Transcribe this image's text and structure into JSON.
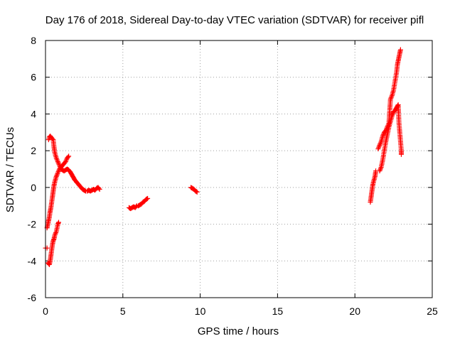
{
  "colors": {
    "series": "#ff0000",
    "grid": "#a0a0a0",
    "axis": "#000000",
    "background": "#ffffff"
  },
  "chart_data": {
    "type": "scatter",
    "title": "Day 176 of 2018, Sidereal Day-to-day VTEC variation (SDTVAR) for receiver pifl",
    "xlabel": "GPS time / hours",
    "ylabel": "SDTVAR / TECUs",
    "xlim": [
      0,
      25
    ],
    "ylim": [
      -6,
      8
    ],
    "xticks": [
      0,
      5,
      10,
      15,
      20,
      25
    ],
    "yticks": [
      -6,
      -4,
      -2,
      0,
      2,
      4,
      6,
      8
    ],
    "grid": true,
    "marker": "plus",
    "series": [
      {
        "name": "SDTVAR",
        "segments": [
          [
            [
              0.0,
              -3.3
            ],
            [
              0.1,
              -3.3
            ]
          ],
          [
            [
              0.15,
              -4.1
            ],
            [
              0.25,
              -4.2
            ],
            [
              0.3,
              -4.0
            ],
            [
              0.35,
              -3.7
            ],
            [
              0.4,
              -3.4
            ],
            [
              0.45,
              -3.1
            ],
            [
              0.5,
              -2.9
            ],
            [
              0.55,
              -2.8
            ],
            [
              0.6,
              -2.6
            ],
            [
              0.7,
              -2.4
            ],
            [
              0.8,
              -2.0
            ],
            [
              0.85,
              -1.9
            ]
          ],
          [
            [
              0.1,
              -2.2
            ],
            [
              0.15,
              -2.0
            ],
            [
              0.2,
              -1.8
            ],
            [
              0.25,
              -1.6
            ],
            [
              0.3,
              -1.3
            ],
            [
              0.35,
              -1.1
            ],
            [
              0.4,
              -0.8
            ],
            [
              0.45,
              -0.5
            ],
            [
              0.5,
              -0.2
            ],
            [
              0.55,
              0.1
            ],
            [
              0.6,
              0.3
            ],
            [
              0.7,
              0.6
            ],
            [
              0.8,
              0.8
            ],
            [
              0.9,
              1.0
            ],
            [
              1.0,
              1.1
            ],
            [
              1.1,
              1.2
            ],
            [
              1.2,
              1.3
            ],
            [
              1.3,
              1.4
            ],
            [
              1.4,
              1.6
            ],
            [
              1.5,
              1.7
            ]
          ],
          [
            [
              0.2,
              2.6
            ],
            [
              0.25,
              2.75
            ],
            [
              0.3,
              2.8
            ],
            [
              0.35,
              2.75
            ],
            [
              0.4,
              2.7
            ],
            [
              0.45,
              2.65
            ],
            [
              0.5,
              2.6
            ],
            [
              0.55,
              2.2
            ],
            [
              0.6,
              1.9
            ],
            [
              0.7,
              1.6
            ],
            [
              0.8,
              1.4
            ],
            [
              0.9,
              1.2
            ],
            [
              1.0,
              1.0
            ],
            [
              1.1,
              0.95
            ],
            [
              1.2,
              0.9
            ],
            [
              1.3,
              0.95
            ],
            [
              1.4,
              1.0
            ],
            [
              1.5,
              0.95
            ],
            [
              1.6,
              0.85
            ],
            [
              1.7,
              0.7
            ],
            [
              1.8,
              0.55
            ],
            [
              1.9,
              0.4
            ],
            [
              2.0,
              0.3
            ],
            [
              2.1,
              0.2
            ],
            [
              2.2,
              0.1
            ],
            [
              2.3,
              0.0
            ],
            [
              2.4,
              -0.1
            ],
            [
              2.5,
              -0.15
            ],
            [
              2.6,
              -0.2
            ],
            [
              2.7,
              -0.2
            ],
            [
              2.8,
              -0.15
            ],
            [
              2.9,
              -0.2
            ],
            [
              3.0,
              -0.15
            ],
            [
              3.1,
              -0.1
            ],
            [
              3.2,
              -0.15
            ],
            [
              3.3,
              -0.05
            ],
            [
              3.4,
              0.0
            ],
            [
              3.5,
              -0.1
            ]
          ],
          [
            [
              5.4,
              -1.1
            ],
            [
              5.5,
              -1.15
            ],
            [
              5.6,
              -1.1
            ],
            [
              5.7,
              -1.05
            ],
            [
              5.8,
              -1.1
            ],
            [
              5.9,
              -1.0
            ],
            [
              6.0,
              -1.0
            ],
            [
              6.1,
              -0.95
            ],
            [
              6.2,
              -0.9
            ],
            [
              6.3,
              -0.8
            ],
            [
              6.4,
              -0.75
            ],
            [
              6.5,
              -0.65
            ],
            [
              6.6,
              -0.6
            ]
          ],
          [
            [
              9.4,
              0.0
            ],
            [
              9.5,
              -0.05
            ],
            [
              9.6,
              -0.1
            ],
            [
              9.7,
              -0.2
            ],
            [
              9.8,
              -0.25
            ]
          ],
          [
            [
              21.0,
              -0.8
            ],
            [
              21.05,
              -0.5
            ],
            [
              21.1,
              -0.2
            ],
            [
              21.15,
              0.1
            ],
            [
              21.2,
              0.3
            ],
            [
              21.3,
              0.6
            ],
            [
              21.35,
              0.9
            ]
          ],
          [
            [
              21.6,
              0.9
            ],
            [
              21.7,
              1.1
            ],
            [
              21.8,
              1.5
            ],
            [
              21.9,
              2.0
            ],
            [
              22.0,
              2.5
            ],
            [
              22.1,
              2.9
            ],
            [
              22.2,
              3.3
            ],
            [
              22.3,
              3.6
            ],
            [
              22.4,
              3.9
            ],
            [
              22.5,
              4.1
            ],
            [
              22.6,
              4.2
            ],
            [
              22.7,
              4.35
            ],
            [
              22.8,
              4.5
            ],
            [
              22.85,
              3.5
            ],
            [
              22.9,
              3.0
            ],
            [
              22.95,
              2.5
            ],
            [
              23.0,
              2.0
            ],
            [
              23.0,
              1.8
            ]
          ],
          [
            [
              21.5,
              2.1
            ],
            [
              21.6,
              2.3
            ],
            [
              21.7,
              2.5
            ],
            [
              21.8,
              2.8
            ],
            [
              21.9,
              3.0
            ],
            [
              22.0,
              3.1
            ],
            [
              22.1,
              3.3
            ],
            [
              22.2,
              3.5
            ],
            [
              22.3,
              4.8
            ],
            [
              22.4,
              5.0
            ],
            [
              22.5,
              5.3
            ],
            [
              22.6,
              5.8
            ],
            [
              22.7,
              6.3
            ],
            [
              22.75,
              6.7
            ],
            [
              22.8,
              6.9
            ],
            [
              22.85,
              7.1
            ],
            [
              22.9,
              7.3
            ],
            [
              22.95,
              7.5
            ]
          ]
        ]
      }
    ]
  }
}
